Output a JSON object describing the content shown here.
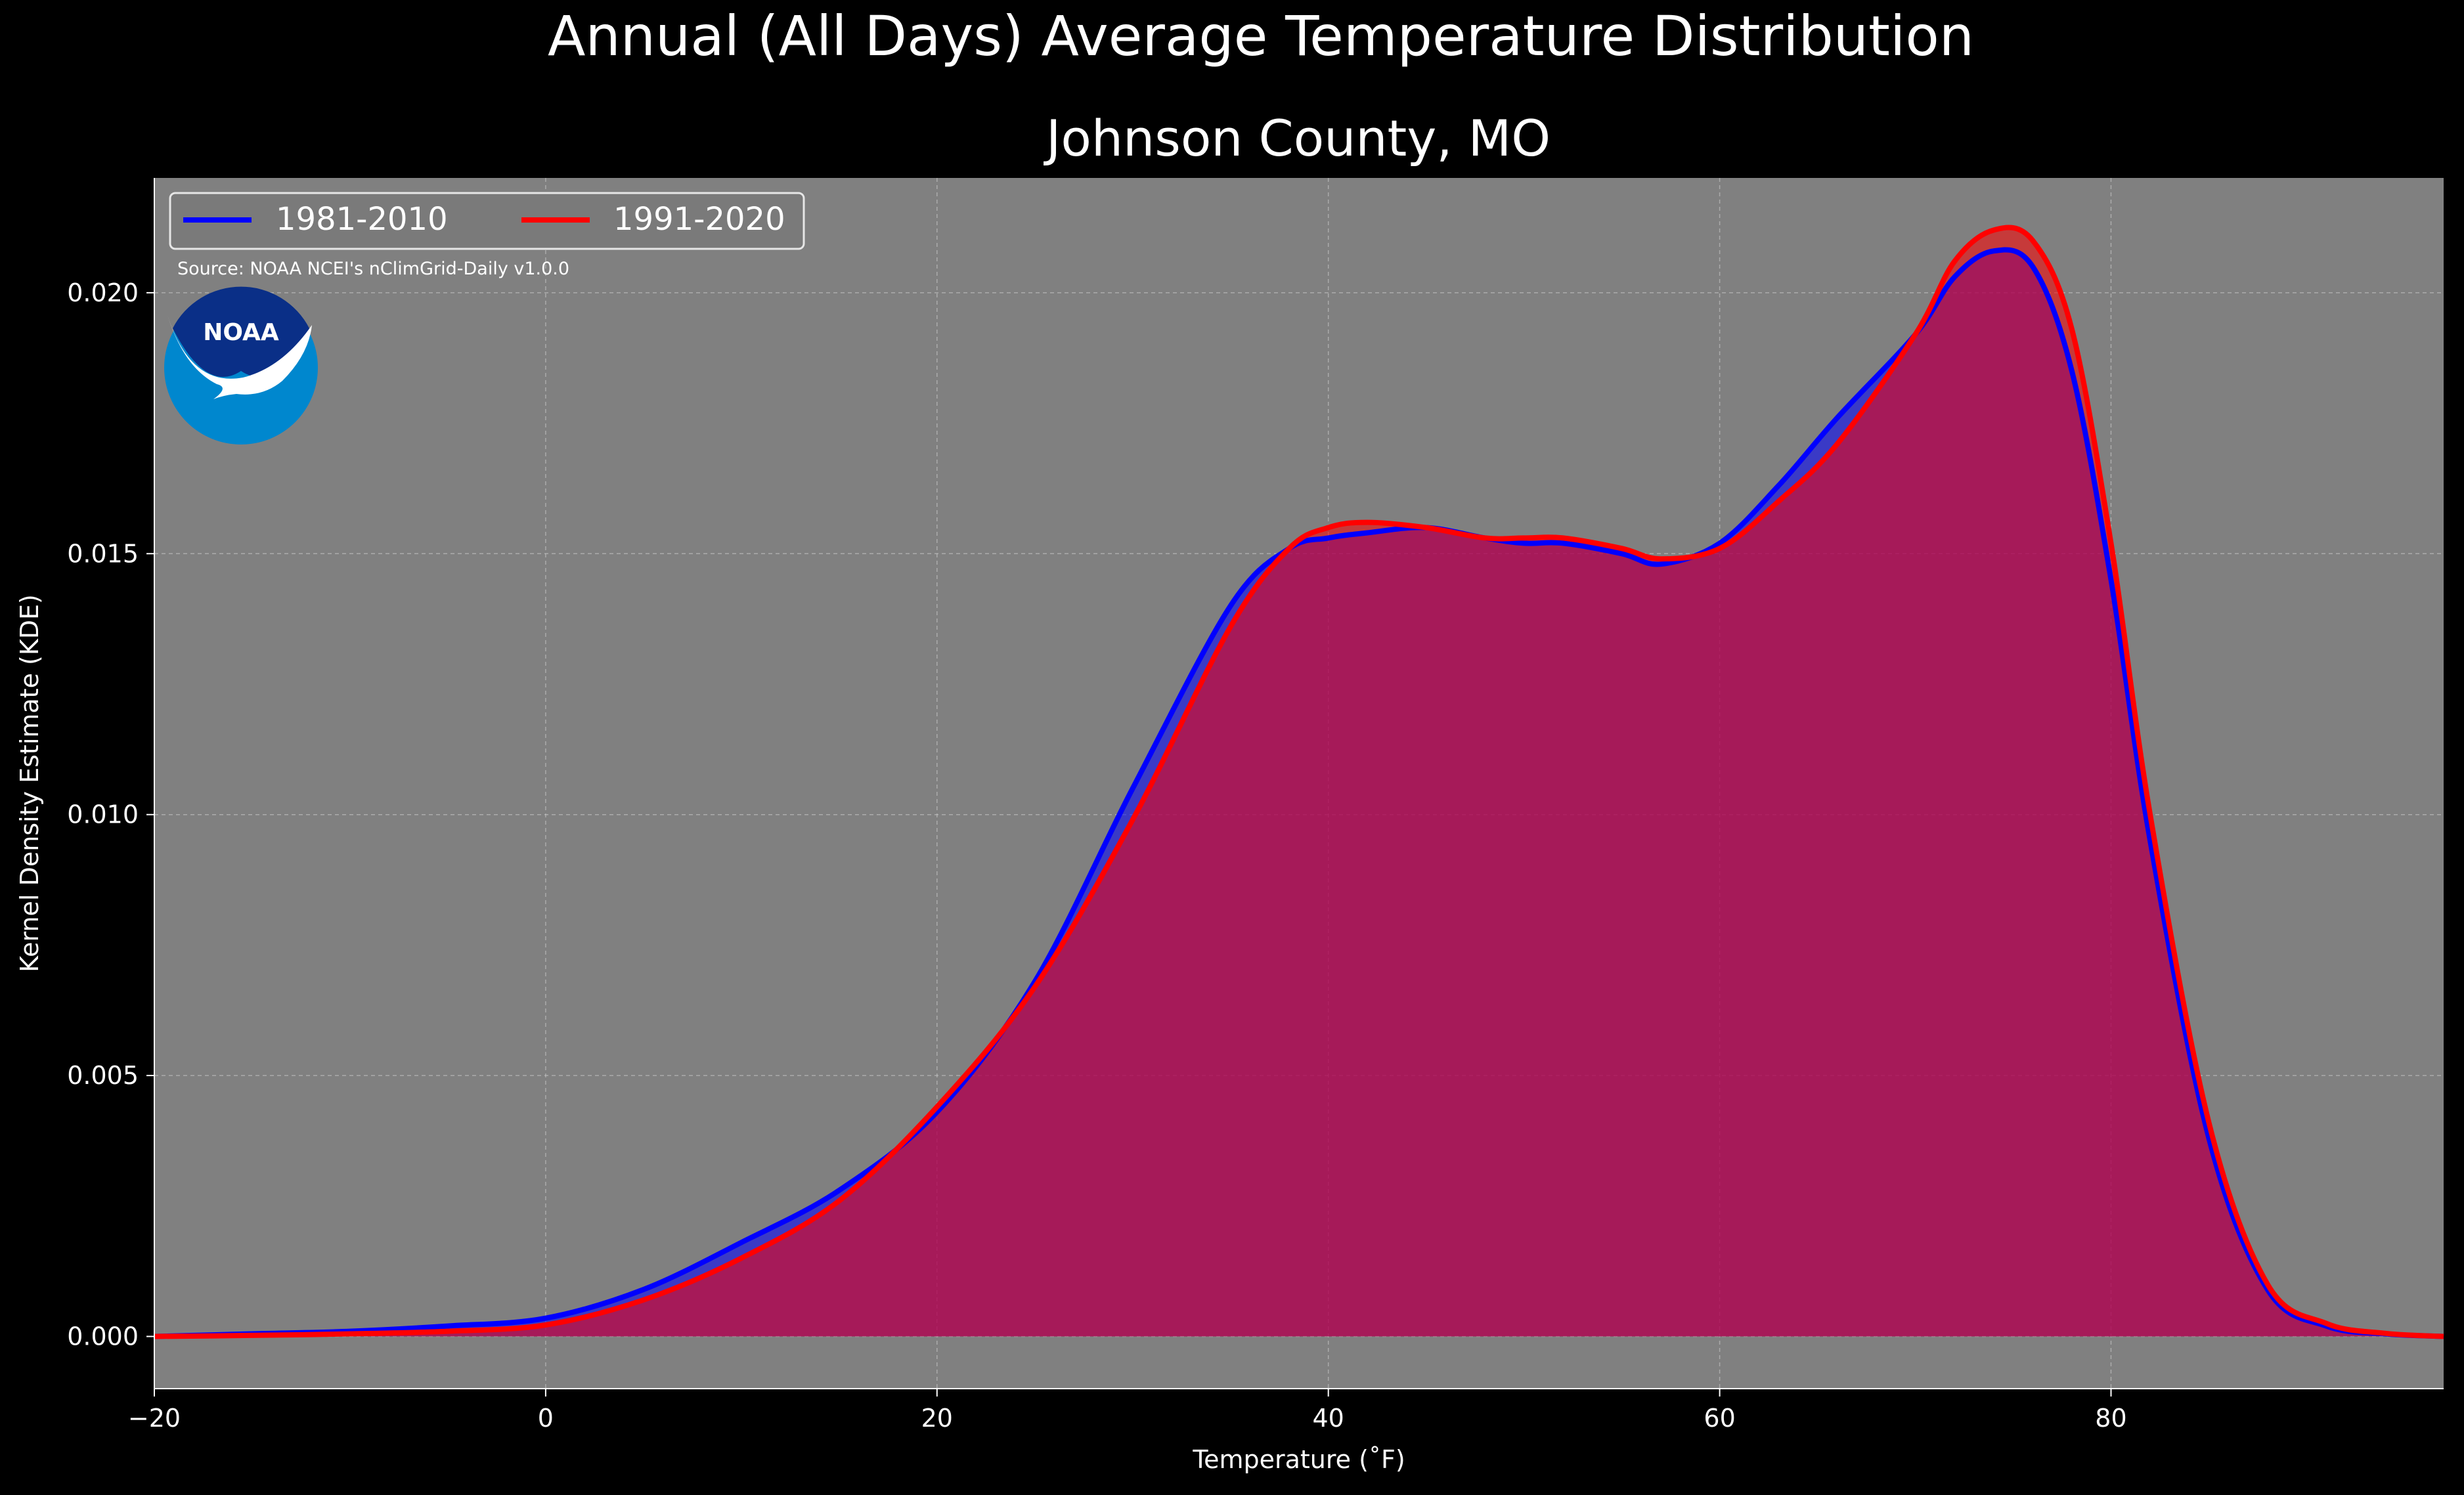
{
  "chart_data": {
    "type": "area",
    "suptitle": "Annual (All Days) Average Temperature Distribution",
    "title": "Johnson County, MO",
    "xlabel": "Temperature ($^\\circ$F)",
    "xlabel_display": "Temperature (˚F)",
    "ylabel": "Kernel Density Estimate (KDE)",
    "xlim": [
      -20,
      97
    ],
    "ylim": [
      -0.001,
      0.0222
    ],
    "xticks": [
      -20,
      0,
      20,
      40,
      60,
      80
    ],
    "xtick_labels": [
      "−20",
      "0",
      "20",
      "40",
      "60",
      "80"
    ],
    "yticks": [
      0.0,
      0.005,
      0.01,
      0.015,
      0.02
    ],
    "ytick_labels": [
      "0.000",
      "0.005",
      "0.010",
      "0.015",
      "0.020"
    ],
    "grid": true,
    "legend_position": "top-left",
    "source_note": "Source: NOAA NCEI's nClimGrid-Daily v1.0.0",
    "logo_text": "NOAA",
    "colors": {
      "background": "#000000",
      "plot_background": "#808080",
      "grid": "#c8c8c8",
      "text": "#ffffff",
      "series_1": "#0000ff",
      "series_2": "#ff0000",
      "overlap_fill": "#9e1e5e",
      "logo_outer": "#0087ce",
      "logo_inner": "#0a2f87"
    },
    "series": [
      {
        "name": "1981-2010",
        "color": "#0000ff",
        "x": [
          -20,
          -15,
          -10,
          -5,
          0,
          5,
          10,
          15,
          20,
          25,
          30,
          35,
          38,
          40,
          42,
          45,
          48,
          50,
          52,
          55,
          57,
          60,
          63,
          66,
          70,
          72,
          74,
          76,
          78,
          80,
          82,
          85,
          88,
          91,
          94,
          97
        ],
        "y": [
          0.0,
          5e-05,
          0.0001,
          0.0002,
          0.00035,
          0.0009,
          0.0018,
          0.0028,
          0.0043,
          0.0068,
          0.0105,
          0.014,
          0.0151,
          0.0153,
          0.0154,
          0.0155,
          0.0153,
          0.0152,
          0.0152,
          0.015,
          0.0148,
          0.0152,
          0.0163,
          0.0176,
          0.0192,
          0.0203,
          0.0208,
          0.0205,
          0.0185,
          0.0145,
          0.0095,
          0.0038,
          0.0009,
          0.0002,
          5e-05,
          0.0
        ]
      },
      {
        "name": "1991-2020",
        "color": "#ff0000",
        "x": [
          -20,
          -15,
          -10,
          -5,
          0,
          5,
          10,
          15,
          20,
          25,
          30,
          35,
          38,
          40,
          42,
          45,
          48,
          50,
          52,
          55,
          57,
          60,
          63,
          66,
          70,
          72,
          74,
          76,
          78,
          80,
          82,
          85,
          88,
          91,
          94,
          97
        ],
        "y": [
          0.0,
          2e-05,
          5e-05,
          0.0001,
          0.00022,
          0.0007,
          0.0015,
          0.0026,
          0.0044,
          0.0067,
          0.0099,
          0.0136,
          0.0151,
          0.0155,
          0.0156,
          0.0155,
          0.0153,
          0.0153,
          0.0153,
          0.0151,
          0.0149,
          0.0151,
          0.016,
          0.0171,
          0.0192,
          0.0206,
          0.0212,
          0.021,
          0.0193,
          0.0152,
          0.01,
          0.0041,
          0.001,
          0.00025,
          6e-05,
          0.0
        ]
      }
    ]
  }
}
